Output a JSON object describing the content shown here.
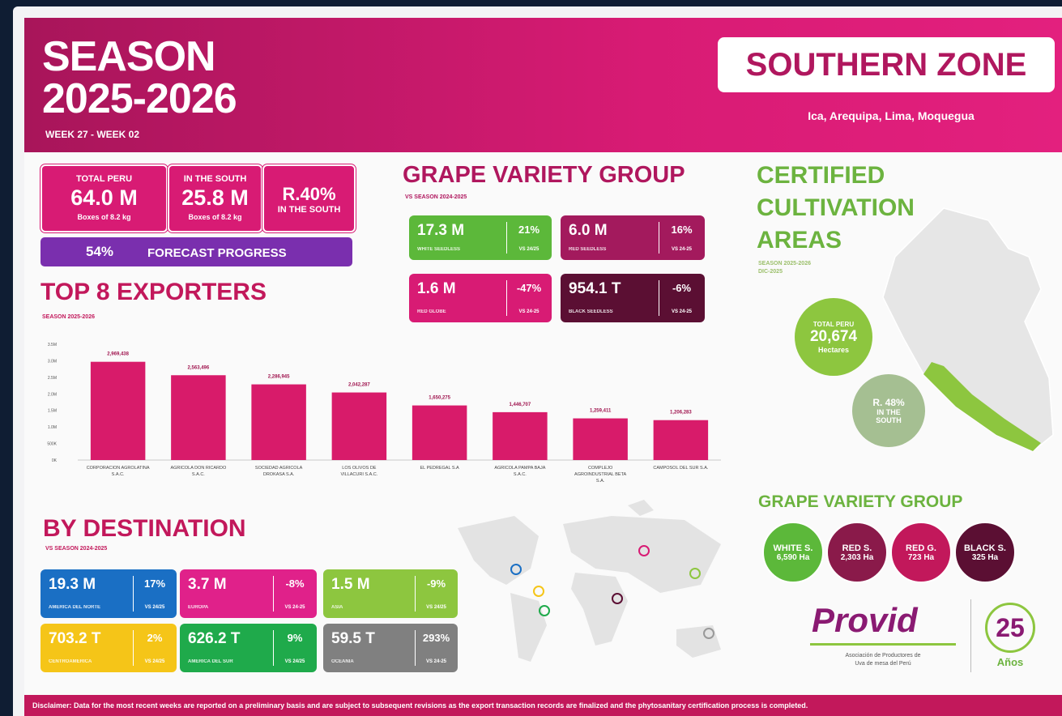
{
  "header": {
    "title_line1": "SEASON",
    "title_line2": "2025-2026",
    "weeks": "WEEK 27 - WEEK 02",
    "zone": "SOUTHERN ZONE",
    "regions": "Ica, Arequipa, Lima, Moquegua"
  },
  "kpis": [
    {
      "label": "TOTAL PERU",
      "value": "64.0 M",
      "unit": "Boxes of 8.2 kg"
    },
    {
      "label": "IN THE SOUTH",
      "value": "25.8 M",
      "unit": "Boxes of 8.2 kg"
    },
    {
      "value": "R.40%",
      "label": "IN THE SOUTH"
    }
  ],
  "forecast": {
    "value": "54%",
    "label": "FORECAST PROGRESS"
  },
  "chart_data": {
    "type": "bar",
    "title": "TOP 8 EXPORTERS",
    "subtitle": "SEASON 2025-2026",
    "color": "#d81b6a",
    "categories": [
      "CORPORACION AGROLATINA S.A.C.",
      "AGRICOLA DON RICARDO S.A.C.",
      "SOCIEDAD AGRICOLA DROKASA S.A.",
      "LOS OLIVOS DE VILLACURI S.A.C.",
      "EL PEDREGAL S.A",
      "AGRICOLA PAMPA BAJA S.A.C.",
      "COMPLEJO AGROINDUSTRIAL BETA S.A.",
      "CAMPOSOL DEL SUR S.A."
    ],
    "values": [
      2969438,
      2563496,
      2286945,
      2042287,
      1650275,
      1446707,
      1259411,
      1206283
    ],
    "value_labels": [
      "2,969,438",
      "2,563,496",
      "2,286,945",
      "2,042,287",
      "1,650,275",
      "1,446,707",
      "1,259,411",
      "1,206,283"
    ],
    "ylim": [
      0,
      3500000
    ],
    "yticks": [
      {
        "value": 0,
        "label": "0K"
      },
      {
        "value": 500000,
        "label": "500K"
      },
      {
        "value": 1000000,
        "label": "1.0M"
      },
      {
        "value": 1500000,
        "label": "1.5M"
      },
      {
        "value": 2000000,
        "label": "2.0M"
      },
      {
        "value": 2500000,
        "label": "2.5M"
      },
      {
        "value": 3000000,
        "label": "3.0M"
      },
      {
        "value": 3500000,
        "label": "3.5M"
      }
    ]
  },
  "variety": {
    "title": "GRAPE VARIETY GROUP",
    "subtitle": "VS SEASON 2024-2025",
    "items": [
      {
        "value": "17.3 M",
        "name": "WHITE SEEDLESS",
        "change": "21%",
        "vs": "VS 24/25"
      },
      {
        "value": "6.0 M",
        "name": "RED SEEDLESS",
        "change": "16%",
        "vs": "VS 24-25"
      },
      {
        "value": "1.6 M",
        "name": "RED GLOBE",
        "change": "-47%",
        "vs": "VS 24-25"
      },
      {
        "value": "954.1 T",
        "name": "BLACK SEEDLESS",
        "change": "-6%",
        "vs": "VS 24-25"
      }
    ]
  },
  "certified": {
    "title_lines": [
      "CERTIFIED",
      "CULTIVATION",
      "AREAS"
    ],
    "subtitle": "SEASON 2025-2026",
    "date": "DIC-2025",
    "total": {
      "label": "TOTAL PERU",
      "value": "20,674",
      "unit": "Hectares"
    },
    "south": {
      "value": "R. 48%",
      "line1": "IN THE",
      "line2": "SOUTH"
    }
  },
  "variety_areas": {
    "title": "GRAPE VARIETY GROUP",
    "items": [
      {
        "name": "WHITE S.",
        "value": "6,590 Ha"
      },
      {
        "name": "RED S.",
        "value": "2,303 Ha"
      },
      {
        "name": "RED G.",
        "value": "723 Ha"
      },
      {
        "name": "BLACK S.",
        "value": "325 Ha"
      }
    ]
  },
  "destination": {
    "title": "BY DESTINATION",
    "subtitle": "VS SEASON 2024-2025",
    "items": [
      {
        "value": "19.3 M",
        "name": "AMERICA DEL NORTE",
        "change": "17%",
        "vs": "VS 24/25"
      },
      {
        "value": "3.7 M",
        "name": "EUROPA",
        "change": "-8%",
        "vs": "VS 24-25"
      },
      {
        "value": "1.5 M",
        "name": "ASIA",
        "change": "-9%",
        "vs": "VS 24/25"
      },
      {
        "value": "703.2 T",
        "name": "CENTROAMERICA",
        "change": "2%",
        "vs": "VS 24/25"
      },
      {
        "value": "626.2 T",
        "name": "AMERICA DEL SUR",
        "change": "9%",
        "vs": "VS 24/25"
      },
      {
        "value": "59.5 T",
        "name": "OCEANIA",
        "change": "293%",
        "vs": "VS 24-25"
      }
    ]
  },
  "logo": {
    "name": "Provid",
    "tagline1": "Asociación de Productores de",
    "tagline2": "Uva de mesa del Perú",
    "anniversary": "25",
    "anniversary_label": "Años"
  },
  "disclaimer": "Disclaimer: Data for the most recent weeks are reported on a preliminary basis and are subject to subsequent revisions as the export transaction records are finalized and the phytosanitary certification process is completed."
}
